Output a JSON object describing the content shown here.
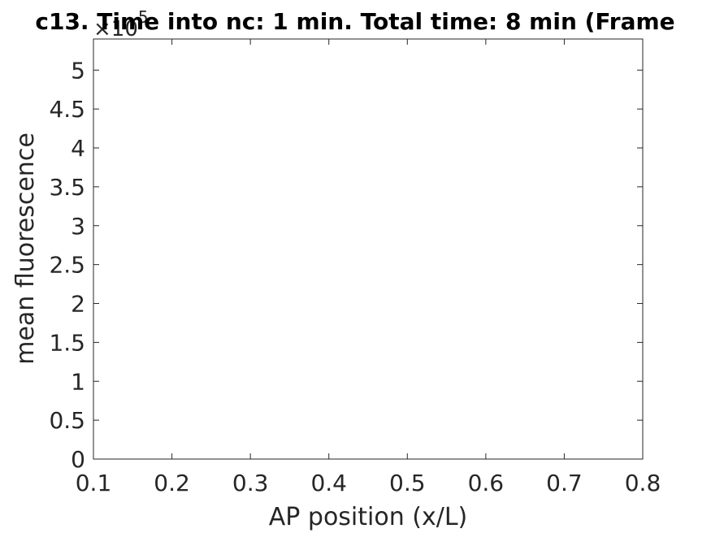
{
  "chart_data": {
    "type": "line",
    "title": "c13. Time into nc: 1 min. Total time: 8 min (Frame",
    "xlabel": "AP position (x/L)",
    "ylabel": "mean fluorescence",
    "xlim": [
      0.1,
      0.8
    ],
    "ylim": [
      0,
      5.4
    ],
    "x_ticks": [
      0.1,
      0.2,
      0.3,
      0.4,
      0.5,
      0.6,
      0.7,
      0.8
    ],
    "x_tick_labels": [
      "0.1",
      "0.2",
      "0.3",
      "0.4",
      "0.5",
      "0.6",
      "0.7",
      "0.8"
    ],
    "y_ticks": [
      0,
      0.5,
      1,
      1.5,
      2,
      2.5,
      3,
      3.5,
      4,
      4.5,
      5
    ],
    "y_tick_labels": [
      "0",
      "0.5",
      "1",
      "1.5",
      "2",
      "2.5",
      "3",
      "3.5",
      "4",
      "4.5",
      "5"
    ],
    "y_multiplier_prefix": "×10",
    "y_multiplier_exponent": "5",
    "grid": false,
    "series": []
  }
}
